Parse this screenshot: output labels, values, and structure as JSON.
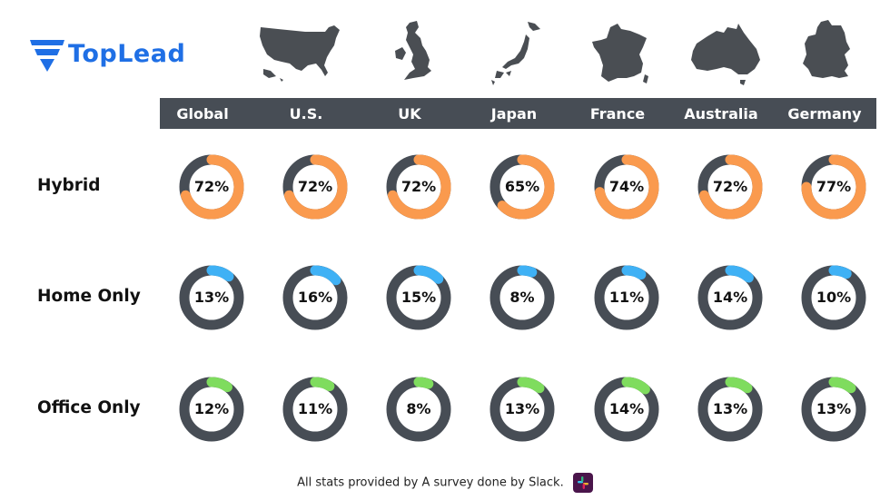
{
  "brand": {
    "name": "TopLead"
  },
  "colors": {
    "ring_bg": "#474d55",
    "hybrid": "#fa9a4e",
    "home": "#3fb1f5",
    "office": "#7fdc5e",
    "header": "#474d55"
  },
  "chart_data": {
    "type": "donut-grid",
    "columns": [
      "Global",
      "U.S.",
      "UK",
      "Japan",
      "France",
      "Australia",
      "Germany"
    ],
    "rows": [
      {
        "name": "Hybrid",
        "color": "#fa9a4e",
        "values": [
          72,
          72,
          72,
          65,
          74,
          72,
          77
        ]
      },
      {
        "name": "Home Only",
        "color": "#3fb1f5",
        "values": [
          13,
          16,
          15,
          8,
          11,
          14,
          10
        ]
      },
      {
        "name": "Office Only",
        "color": "#7fdc5e",
        "values": [
          12,
          11,
          8,
          13,
          14,
          13,
          13
        ]
      }
    ],
    "unit": "%"
  },
  "footer": {
    "text": "All stats provided by A survey done by Slack."
  },
  "icons": [
    "toplead-logo-icon",
    "usa-map-icon",
    "uk-map-icon",
    "japan-map-icon",
    "france-map-icon",
    "australia-map-icon",
    "germany-map-icon",
    "slack-icon"
  ]
}
